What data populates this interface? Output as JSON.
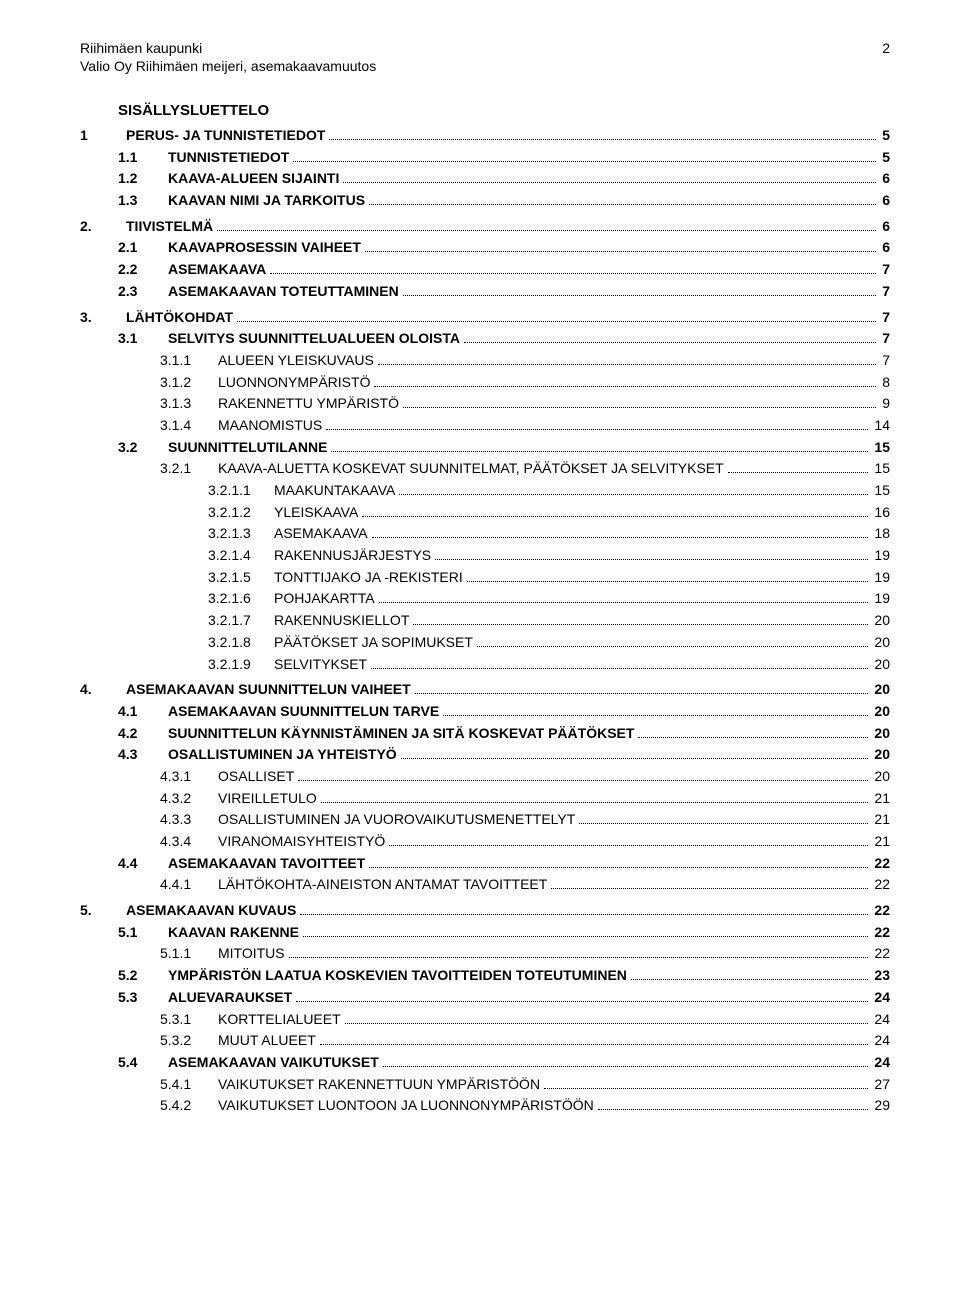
{
  "header": {
    "line1": "Riihimäen kaupunki",
    "line2": "Valio Oy Riihimäen meijeri, asemakaavamuutos",
    "pageNumber": "2"
  },
  "tocTitle": "SISÄLLYSLUETTELO",
  "entries": [
    {
      "level": 1,
      "num": "1",
      "label": "PERUS- JA TUNNISTETIEDOT",
      "page": "5",
      "gap": false
    },
    {
      "level": 2,
      "num": "1.1",
      "label": "TUNNISTETIEDOT",
      "page": "5",
      "gap": false
    },
    {
      "level": 2,
      "num": "1.2",
      "label": "KAAVA-ALUEEN SIJAINTI",
      "page": "6",
      "gap": false
    },
    {
      "level": 2,
      "num": "1.3",
      "label": "KAAVAN NIMI JA TARKOITUS",
      "page": "6",
      "gap": false
    },
    {
      "level": 1,
      "num": "2.",
      "label": "TIIVISTELMÄ",
      "page": "6",
      "gap": true
    },
    {
      "level": 2,
      "num": "2.1",
      "label": "KAAVAPROSESSIN VAIHEET",
      "page": "6",
      "gap": false
    },
    {
      "level": 2,
      "num": "2.2",
      "label": "ASEMAKAAVA",
      "page": "7",
      "gap": false
    },
    {
      "level": 2,
      "num": "2.3",
      "label": "ASEMAKAAVAN TOTEUTTAMINEN",
      "page": "7",
      "gap": false
    },
    {
      "level": 1,
      "num": "3.",
      "label": "LÄHTÖKOHDAT",
      "page": "7",
      "gap": true
    },
    {
      "level": 2,
      "num": "3.1",
      "label": "SELVITYS SUUNNITTELUALUEEN OLOISTA",
      "page": "7",
      "gap": false
    },
    {
      "level": 3,
      "num": "3.1.1",
      "label": "ALUEEN YLEISKUVAUS",
      "page": "7",
      "gap": false
    },
    {
      "level": 3,
      "num": "3.1.2",
      "label": "LUONNONYMPÄRISTÖ",
      "page": "8",
      "gap": false
    },
    {
      "level": 3,
      "num": "3.1.3",
      "label": "RAKENNETTU YMPÄRISTÖ",
      "page": "9",
      "gap": false
    },
    {
      "level": 3,
      "num": "3.1.4",
      "label": "MAANOMISTUS",
      "page": "14",
      "gap": false
    },
    {
      "level": 2,
      "num": "3.2",
      "label": "SUUNNITTELUTILANNE",
      "page": "15",
      "gap": false
    },
    {
      "level": 3,
      "num": "3.2.1",
      "label": "KAAVA-ALUETTA KOSKEVAT SUUNNITELMAT, PÄÄTÖKSET JA SELVITYKSET",
      "page": "15",
      "gap": false
    },
    {
      "level": 4,
      "num": "3.2.1.1",
      "label": "MAAKUNTAKAAVA",
      "page": "15",
      "gap": false
    },
    {
      "level": 4,
      "num": "3.2.1.2",
      "label": "YLEISKAAVA",
      "page": "16",
      "gap": false
    },
    {
      "level": 4,
      "num": "3.2.1.3",
      "label": "ASEMAKAAVA",
      "page": "18",
      "gap": false
    },
    {
      "level": 4,
      "num": "3.2.1.4",
      "label": "RAKENNUSJÄRJESTYS",
      "page": "19",
      "gap": false
    },
    {
      "level": 4,
      "num": "3.2.1.5",
      "label": "TONTTIJAKO JA -REKISTERI",
      "page": "19",
      "gap": false
    },
    {
      "level": 4,
      "num": "3.2.1.6",
      "label": "POHJAKARTTA",
      "page": "19",
      "gap": false
    },
    {
      "level": 4,
      "num": "3.2.1.7",
      "label": "RAKENNUSKIELLOT",
      "page": "20",
      "gap": false
    },
    {
      "level": 4,
      "num": "3.2.1.8",
      "label": "PÄÄTÖKSET JA SOPIMUKSET",
      "page": "20",
      "gap": false
    },
    {
      "level": 4,
      "num": "3.2.1.9",
      "label": "SELVITYKSET",
      "page": "20",
      "gap": false
    },
    {
      "level": 1,
      "num": "4.",
      "label": "ASEMAKAAVAN SUUNNITTELUN VAIHEET",
      "page": "20",
      "gap": true
    },
    {
      "level": 2,
      "num": "4.1",
      "label": "ASEMAKAAVAN SUUNNITTELUN TARVE",
      "page": "20",
      "gap": false
    },
    {
      "level": 2,
      "num": "4.2",
      "label": "SUUNNITTELUN KÄYNNISTÄMINEN JA SITÄ KOSKEVAT PÄÄTÖKSET",
      "page": "20",
      "gap": false
    },
    {
      "level": 2,
      "num": "4.3",
      "label": "OSALLISTUMINEN JA YHTEISTYÖ",
      "page": "20",
      "gap": false
    },
    {
      "level": 3,
      "num": "4.3.1",
      "label": "OSALLISET",
      "page": "20",
      "gap": false
    },
    {
      "level": 3,
      "num": "4.3.2",
      "label": "VIREILLETULO",
      "page": "21",
      "gap": false
    },
    {
      "level": 3,
      "num": "4.3.3",
      "label": "OSALLISTUMINEN JA VUOROVAIKUTUSMENETTELYT",
      "page": "21",
      "gap": false
    },
    {
      "level": 3,
      "num": "4.3.4",
      "label": "VIRANOMAISYHTEISTYÖ",
      "page": "21",
      "gap": false
    },
    {
      "level": 2,
      "num": "4.4",
      "label": "ASEMAKAAVAN TAVOITTEET",
      "page": "22",
      "gap": false
    },
    {
      "level": 3,
      "num": "4.4.1",
      "label": "LÄHTÖKOHTA-AINEISTON ANTAMAT TAVOITTEET",
      "page": "22",
      "gap": false
    },
    {
      "level": 1,
      "num": "5.",
      "label": "ASEMAKAAVAN KUVAUS",
      "page": "22",
      "gap": true
    },
    {
      "level": 2,
      "num": "5.1",
      "label": "KAAVAN RAKENNE",
      "page": "22",
      "gap": false
    },
    {
      "level": 3,
      "num": "5.1.1",
      "label": "MITOITUS",
      "page": "22",
      "gap": false
    },
    {
      "level": 2,
      "num": "5.2",
      "label": "YMPÄRISTÖN LAATUA KOSKEVIEN TAVOITTEIDEN TOTEUTUMINEN",
      "page": "23",
      "gap": false
    },
    {
      "level": 2,
      "num": "5.3",
      "label": "ALUEVARAUKSET",
      "page": "24",
      "gap": false
    },
    {
      "level": 3,
      "num": "5.3.1",
      "label": "KORTTELIALUEET",
      "page": "24",
      "gap": false
    },
    {
      "level": 3,
      "num": "5.3.2",
      "label": "MUUT ALUEET",
      "page": "24",
      "gap": false
    },
    {
      "level": 2,
      "num": "5.4",
      "label": "ASEMAKAAVAN VAIKUTUKSET",
      "page": "24",
      "gap": false
    },
    {
      "level": 3,
      "num": "5.4.1",
      "label": "VAIKUTUKSET RAKENNETTUUN YMPÄRISTÖÖN",
      "page": "27",
      "gap": false
    },
    {
      "level": 3,
      "num": "5.4.2",
      "label": "VAIKUTUKSET LUONTOON JA LUONNONYMPÄRISTÖÖN",
      "page": "29",
      "gap": false
    }
  ]
}
